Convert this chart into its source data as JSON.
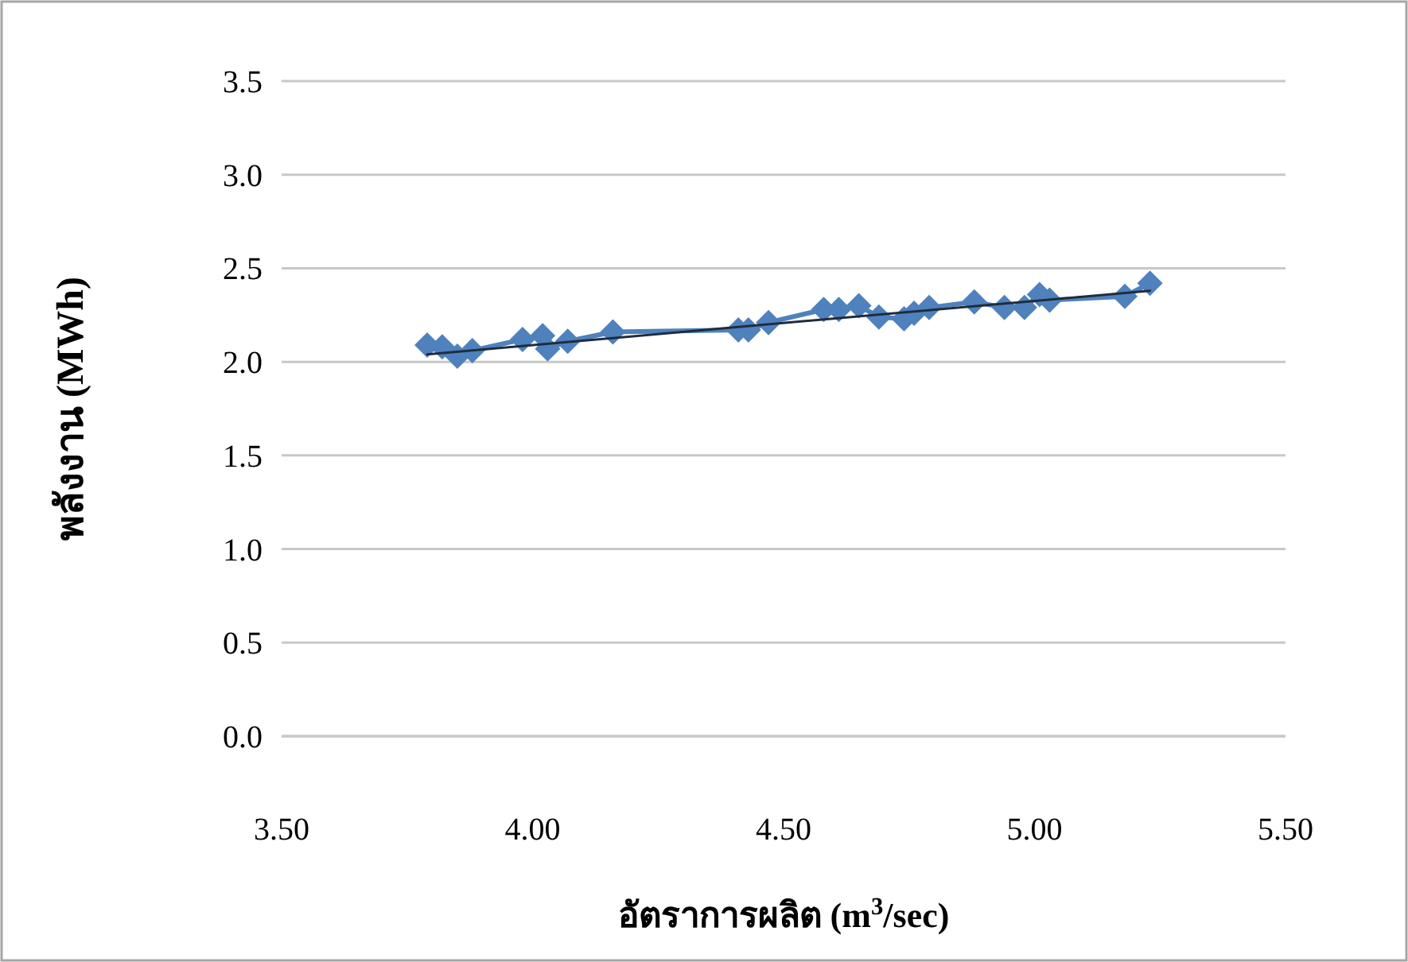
{
  "chart_data": {
    "type": "line",
    "xlabel": "อัตราการผลิต (m$^{3}$/sec)",
    "ylabel": "พลังงาน (MWh)",
    "xlim": [
      3.5,
      5.5
    ],
    "xticks": [
      {
        "value": 3.5,
        "label": "3.50"
      },
      {
        "value": 4.0,
        "label": "4.00"
      },
      {
        "value": 4.5,
        "label": "4.50"
      },
      {
        "value": 5.0,
        "label": "5.00"
      },
      {
        "value": 5.5,
        "label": "5.50"
      }
    ],
    "ylim": [
      0,
      3.5
    ],
    "yticks": [
      {
        "value": 0,
        "label": "0.0"
      },
      0.5,
      {
        "value": 1,
        "label": "1.0"
      },
      1.5,
      {
        "value": 2,
        "label": "2.0"
      },
      2.5,
      {
        "value": 3,
        "label": "3.0"
      },
      3.5
    ],
    "grid": "y",
    "series": [
      {
        "color": "#4f81bd",
        "marker": "diamond",
        "x": [
          3.79,
          3.82,
          3.85,
          3.88,
          3.98,
          4.02,
          4.03,
          4.07,
          4.16,
          4.41,
          4.43,
          4.47,
          4.58,
          4.61,
          4.65,
          4.69,
          4.74,
          4.76,
          4.79,
          4.88,
          4.94,
          4.98,
          5.01,
          5.03,
          5.18,
          5.23
        ],
        "values": [
          2.09,
          2.08,
          2.03,
          2.06,
          2.12,
          2.14,
          2.07,
          2.11,
          2.16,
          2.17,
          2.17,
          2.21,
          2.28,
          2.28,
          2.3,
          2.24,
          2.23,
          2.26,
          2.29,
          2.32,
          2.29,
          2.29,
          2.36,
          2.33,
          2.35,
          2.42
        ]
      },
      {
        "color": "#1f2d3d",
        "marker": "none",
        "x": [
          3.79,
          5.23
        ],
        "values": [
          2.04,
          2.38
        ]
      }
    ]
  }
}
